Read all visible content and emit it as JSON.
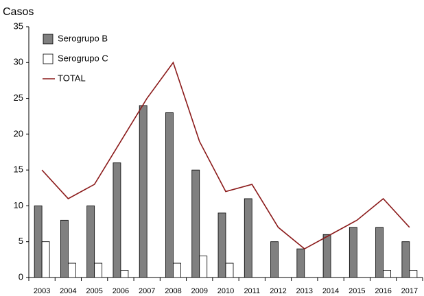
{
  "chart_data": {
    "type": "bar",
    "title": "Casos",
    "categories": [
      "2003",
      "2004",
      "2005",
      "2006",
      "2007",
      "2008",
      "2009",
      "2010",
      "2011",
      "2012",
      "2013",
      "2014",
      "2015",
      "2016",
      "2017"
    ],
    "series": [
      {
        "name": "Serogrupo B",
        "type": "bar",
        "color": "#808080",
        "values": [
          10,
          8,
          10,
          16,
          24,
          23,
          15,
          9,
          11,
          5,
          4,
          6,
          7,
          7,
          5
        ]
      },
      {
        "name": "Serogrupo C",
        "type": "bar",
        "color": "#ffffff",
        "values": [
          5,
          2,
          2,
          1,
          0,
          2,
          3,
          2,
          0,
          0,
          0,
          0,
          0,
          1,
          1
        ]
      },
      {
        "name": "TOTAL",
        "type": "line",
        "color": "#8b1a1a",
        "values": [
          15,
          11,
          13,
          19,
          25,
          30,
          19,
          12,
          13,
          7,
          4,
          6,
          8,
          11,
          7
        ]
      }
    ],
    "ylim": [
      0,
      35
    ],
    "yticks": [
      0,
      5,
      10,
      15,
      20,
      25,
      30,
      35
    ],
    "grid": false,
    "legend": "top-left"
  }
}
